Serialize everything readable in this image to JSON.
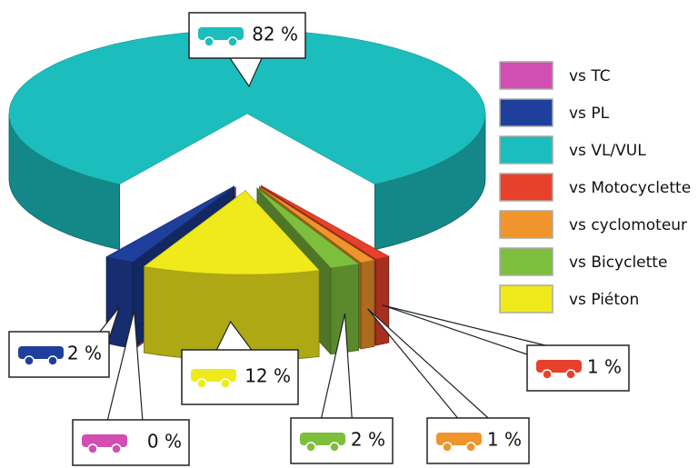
{
  "chart_data": {
    "type": "pie",
    "categories": [
      "vs TC",
      "vs PL",
      "vs VL/VUL",
      "vs Motocyclette",
      "vs cyclomoteur",
      "vs Bicyclette",
      "vs Piéton"
    ],
    "values": [
      0,
      2,
      82,
      1,
      1,
      2,
      12
    ],
    "value_labels": [
      "0 %",
      "2 %",
      "82 %",
      "1 %",
      "1 %",
      "2 %",
      "12 %"
    ],
    "colors": [
      "#d14fb2",
      "#1f3f9c",
      "#1cbdbd",
      "#e8412b",
      "#f0952b",
      "#7dbf3d",
      "#f0ea1c"
    ]
  }
}
